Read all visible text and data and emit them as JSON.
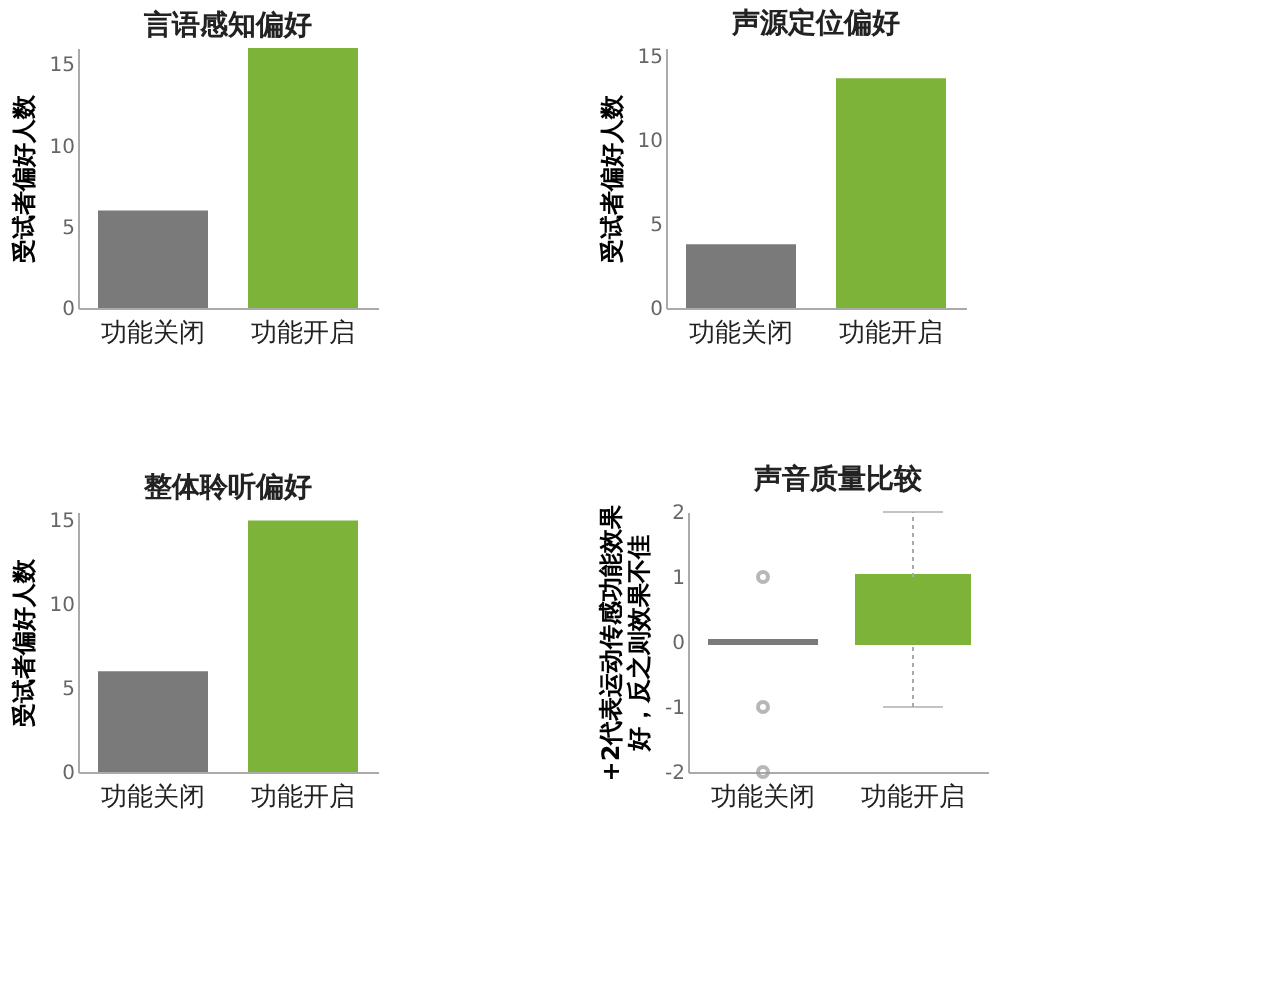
{
  "chart_data": [
    {
      "type": "bar",
      "title": "言语感知偏好",
      "ylabel": "受试者偏好人数",
      "categories": [
        "功能关闭",
        "功能开启"
      ],
      "values": [
        6,
        16
      ],
      "colors": [
        "#7a7a7a",
        "#7db339"
      ],
      "ylim": [
        0,
        16
      ],
      "yticks": [
        0,
        5,
        10,
        15
      ],
      "grid": false
    },
    {
      "type": "bar",
      "title": "声源定位偏好",
      "ylabel": "受试者偏好人数",
      "categories": [
        "功能关闭",
        "功能开启"
      ],
      "values": [
        3.8,
        13.7
      ],
      "colors": [
        "#7a7a7a",
        "#7db339"
      ],
      "ylim": [
        0,
        15.5
      ],
      "yticks": [
        0,
        5,
        10,
        15
      ],
      "grid": false
    },
    {
      "type": "bar",
      "title": "整体聆听偏好",
      "ylabel": "受试者偏好人数",
      "categories": [
        "功能关闭",
        "功能开启"
      ],
      "values": [
        6,
        15
      ],
      "colors": [
        "#7a7a7a",
        "#7db339"
      ],
      "ylim": [
        0,
        15.5
      ],
      "yticks": [
        0,
        5,
        10,
        15
      ],
      "grid": false
    },
    {
      "type": "box",
      "title": "声音质量比较",
      "ylabel": [
        "+2代表运动传感功能效果",
        "好，反之则效果不佳"
      ],
      "categories": [
        "功能关闭",
        "功能开启"
      ],
      "boxes": [
        {
          "low": 0,
          "q1": 0,
          "median": 0,
          "q3": 0,
          "high": 0,
          "outliers": [
            1,
            -1,
            -2
          ]
        },
        {
          "low": -1,
          "q1": 0,
          "median": 0,
          "q3": 1,
          "high": 2
        }
      ],
      "colors": [
        "#7a7a7a",
        "#7db339"
      ],
      "ylim": [
        -2,
        2
      ],
      "yticks": [
        -2,
        -1,
        0,
        1,
        2
      ],
      "grid": false
    }
  ]
}
